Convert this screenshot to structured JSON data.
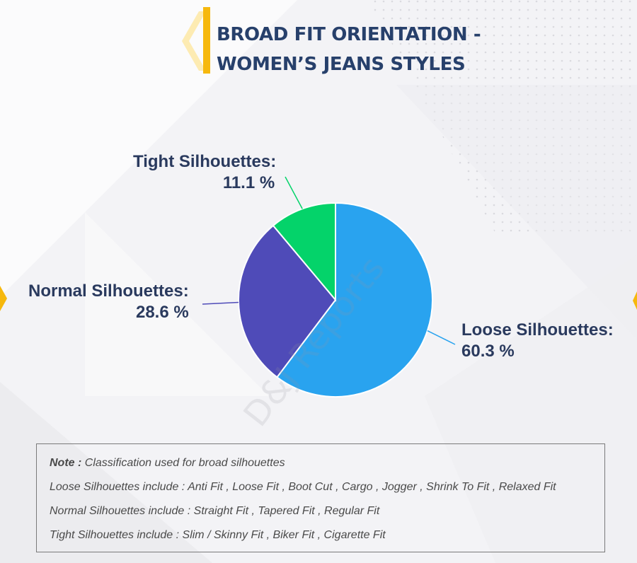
{
  "header": {
    "title_line1": "BROAD FIT ORIENTATION -",
    "title_line2": "WOMEN’S JEANS STYLES"
  },
  "watermark": "D&J Reports",
  "colors": {
    "loose": "#29a3ef",
    "normal": "#4f4bb8",
    "tight": "#04d36a",
    "accent": "#f6b80d",
    "title": "#27406b"
  },
  "chart_data": {
    "type": "pie",
    "slices": [
      {
        "name": "Loose Silhouettes:",
        "value": 60.3,
        "label": "60.3 %"
      },
      {
        "name": "Normal Silhouettes:",
        "value": 28.6,
        "label": "28.6 %"
      },
      {
        "name": "Tight Silhouettes:",
        "value": 11.1,
        "label": "11.1 %"
      }
    ],
    "title": "BROAD FIT ORIENTATION - WOMEN’S JEANS STYLES"
  },
  "note": {
    "lines": [
      {
        "key": "Note :",
        "text": " Classification used for broad silhouettes"
      },
      {
        "key": "Loose Silhouettes include :",
        "text": " Anti Fit , Loose Fit , Boot Cut , Cargo , Jogger , Shrink To Fit , Relaxed Fit"
      },
      {
        "key": "Normal Silhouettes include :",
        "text": " Straight Fit , Tapered Fit , Regular Fit"
      },
      {
        "key": "Tight Silhouettes include :",
        "text": " Slim / Skinny Fit , Biker Fit , Cigarette Fit"
      }
    ]
  }
}
